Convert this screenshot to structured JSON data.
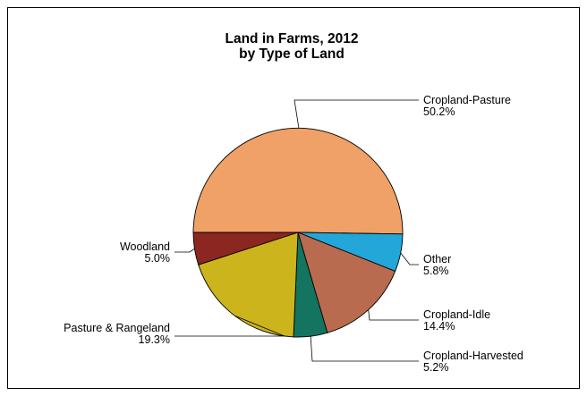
{
  "chart_data": {
    "type": "pie",
    "title": "Land in Farms, 2012",
    "subtitle": "by Type of Land",
    "slices": [
      {
        "label": "Cropland-Pasture",
        "value": 50.2,
        "value_label": "50.2%",
        "color": "#F0A167"
      },
      {
        "label": "Other",
        "value": 5.8,
        "value_label": "5.8%",
        "color": "#22A7D8"
      },
      {
        "label": "Cropland-Idle",
        "value": 14.4,
        "value_label": "14.4%",
        "color": "#B96B4F"
      },
      {
        "label": "Cropland-Harvested",
        "value": 5.2,
        "value_label": "5.2%",
        "color": "#137460"
      },
      {
        "label": "Pasture & Rangeland",
        "value": 19.3,
        "value_label": "19.3%",
        "color": "#CBB41C"
      },
      {
        "label": "Woodland",
        "value": 5.0,
        "value_label": "5.0%",
        "color": "#8B2620"
      }
    ],
    "start_direction": "9 o'clock",
    "direction": "clockwise",
    "legend": "none"
  }
}
